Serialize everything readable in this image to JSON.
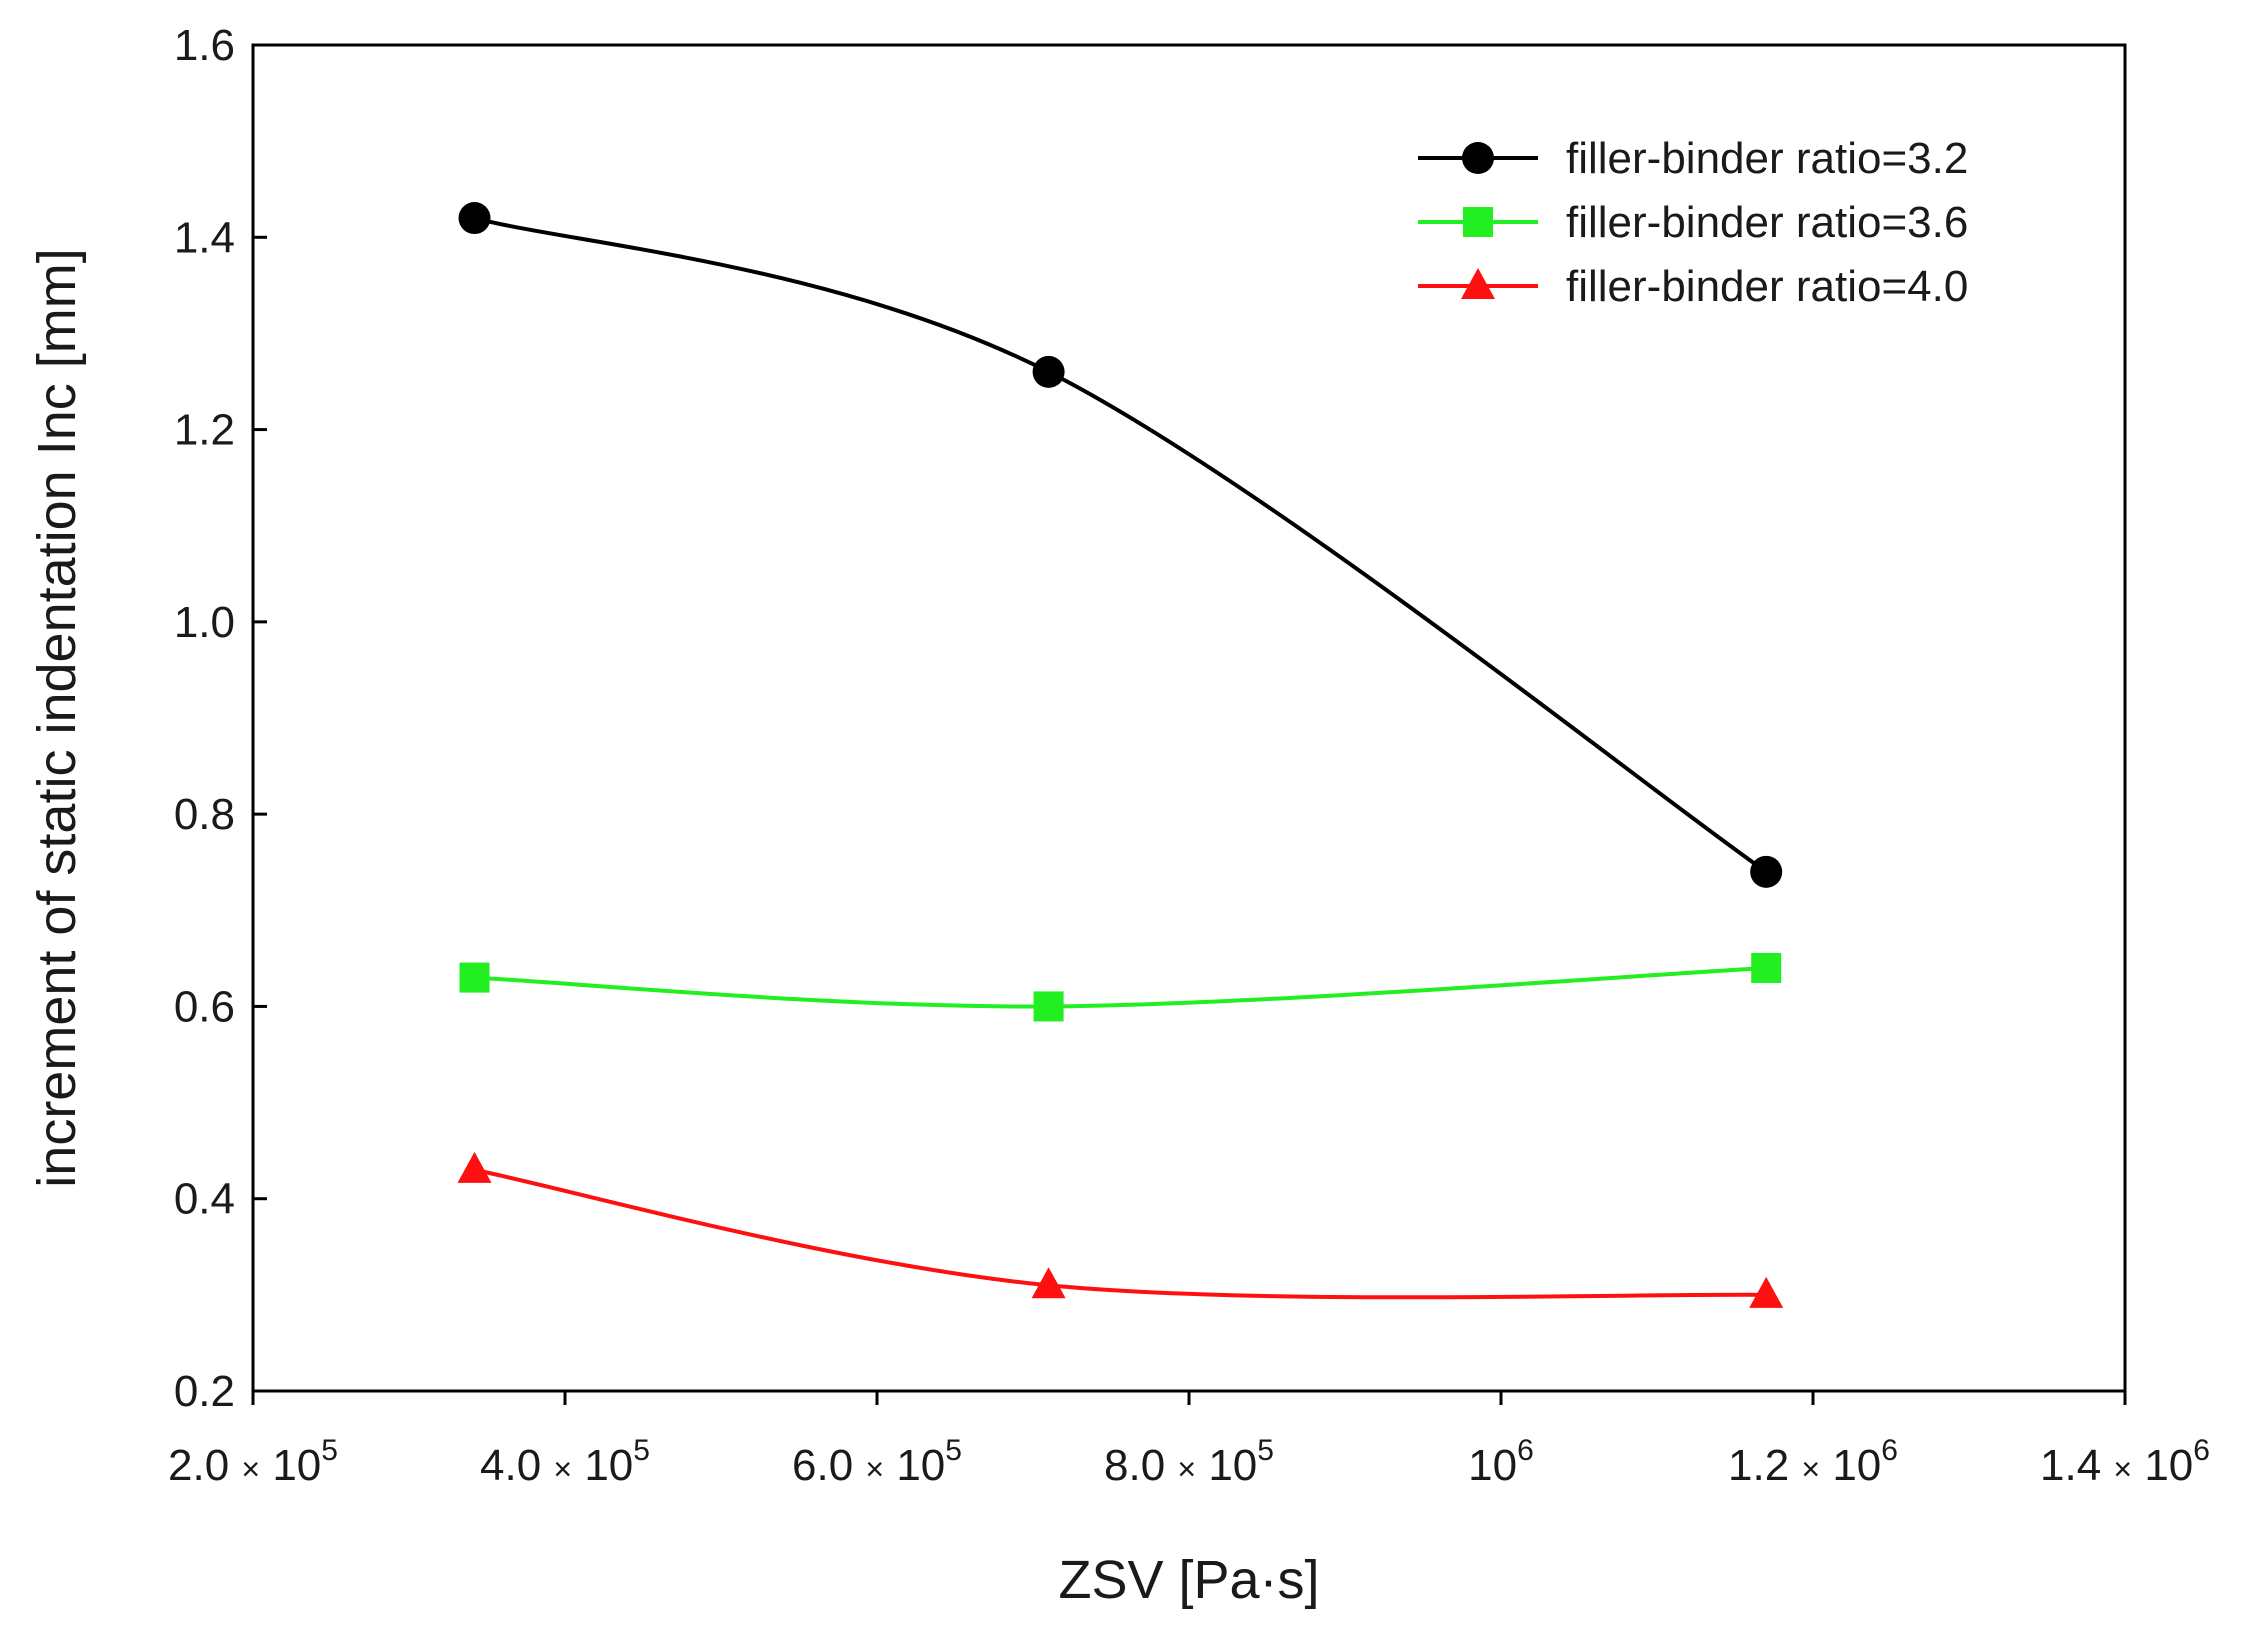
{
  "chart_data": {
    "type": "line",
    "title": "",
    "xlabel": "ZSV [Pa·s]",
    "ylabel": "increment of static indentation  Inc [mm]",
    "xlim": [
      200000,
      1400000
    ],
    "ylim": [
      0.2,
      1.6
    ],
    "grid": false,
    "legend_position": "top-right",
    "x_ticks": [
      {
        "value": 200000,
        "mantissa": "2.0",
        "base": "10",
        "exp": "5"
      },
      {
        "value": 400000,
        "mantissa": "4.0",
        "base": "10",
        "exp": "5"
      },
      {
        "value": 600000,
        "mantissa": "6.0",
        "base": "10",
        "exp": "5"
      },
      {
        "value": 800000,
        "mantissa": "8.0",
        "base": "10",
        "exp": "5"
      },
      {
        "value": 1000000,
        "mantissa": "",
        "base": "10",
        "exp": "6"
      },
      {
        "value": 1200000,
        "mantissa": "1.2",
        "base": "10",
        "exp": "6"
      },
      {
        "value": 1400000,
        "mantissa": "1.4",
        "base": "10",
        "exp": "6"
      }
    ],
    "y_ticks": [
      {
        "value": 0.2,
        "label": "0.2"
      },
      {
        "value": 0.4,
        "label": "0.4"
      },
      {
        "value": 0.6,
        "label": "0.6"
      },
      {
        "value": 0.8,
        "label": "0.8"
      },
      {
        "value": 1.0,
        "label": "1.0"
      },
      {
        "value": 1.2,
        "label": "1.2"
      },
      {
        "value": 1.4,
        "label": "1.4"
      },
      {
        "value": 1.6,
        "label": "1.6"
      }
    ],
    "series": [
      {
        "name": "filler-binder ratio=3.2",
        "color": "#000000",
        "marker": "circle",
        "x": [
          342000,
          710000,
          1170000
        ],
        "y": [
          1.42,
          1.26,
          0.74
        ]
      },
      {
        "name": "filler-binder ratio=3.6",
        "color": "#22ee22",
        "marker": "square",
        "x": [
          342000,
          710000,
          1170000
        ],
        "y": [
          0.63,
          0.6,
          0.64
        ]
      },
      {
        "name": "filler-binder ratio=4.0",
        "color": "#ff1010",
        "marker": "triangle",
        "x": [
          342000,
          710000,
          1170000
        ],
        "y": [
          0.43,
          0.31,
          0.3
        ]
      }
    ]
  }
}
